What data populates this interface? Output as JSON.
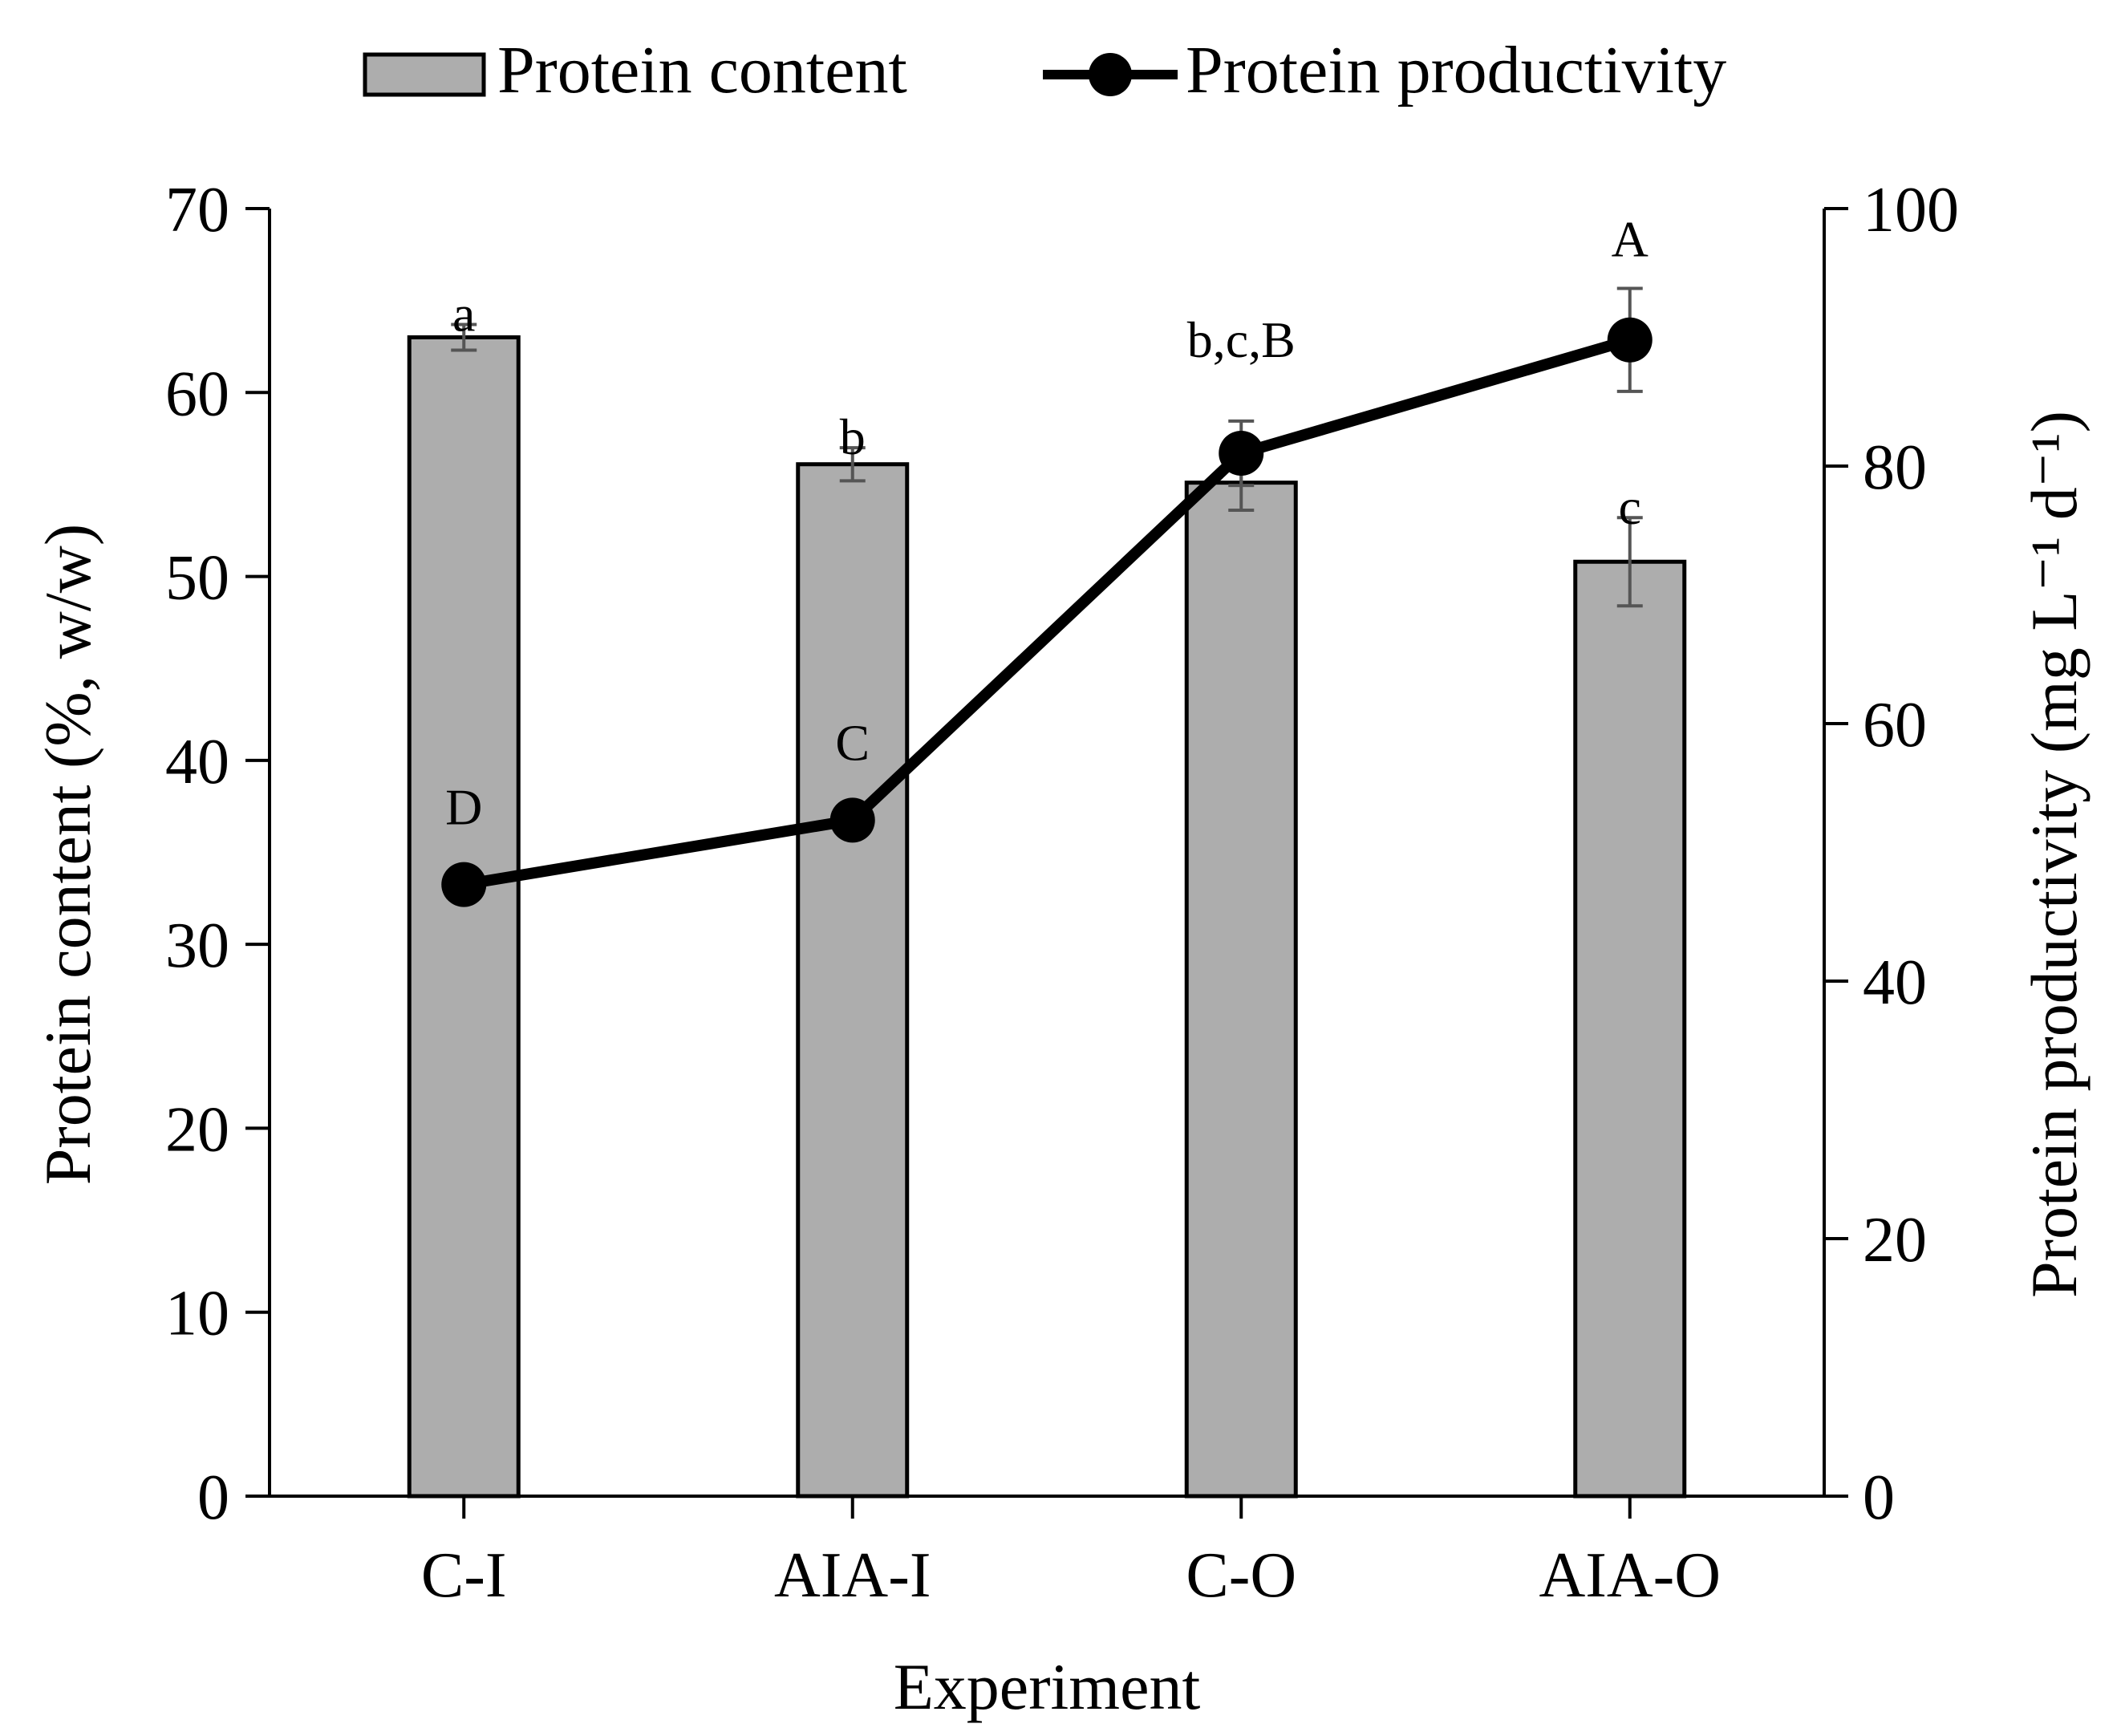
{
  "chart_data": {
    "type": "bar+line",
    "categories": [
      "C-I",
      "AIA-I",
      "C-O",
      "AIA-O"
    ],
    "xlabel": "Experiment",
    "legend": {
      "position": "top",
      "bar_label": "Protein content",
      "line_label": "Protein productivity"
    },
    "y_left": {
      "label": "Protein content (%, w/w)",
      "range": [
        0,
        70
      ],
      "ticks": [
        0,
        10,
        20,
        30,
        40,
        50,
        60,
        70
      ]
    },
    "y_right": {
      "label": "Protein productivity (mg L⁻¹ d⁻¹)",
      "range": [
        0,
        100
      ],
      "ticks": [
        0,
        20,
        40,
        60,
        80,
        100
      ]
    },
    "series": [
      {
        "name": "Protein content",
        "type": "bar",
        "axis": "left",
        "values": [
          63.0,
          56.1,
          55.1,
          50.8
        ],
        "errors": [
          0.7,
          0.9,
          1.5,
          2.4
        ],
        "labels": [
          "a",
          "b",
          "",
          "c"
        ]
      },
      {
        "name": "Protein productivity",
        "type": "line",
        "axis": "right",
        "values": [
          47.5,
          52.5,
          81.0,
          89.8
        ],
        "errors": [
          0,
          0,
          2.5,
          4.0
        ],
        "labels": [
          "D",
          "C",
          "",
          "A"
        ]
      }
    ],
    "shared_labels": [
      "",
      "",
      "b,c,B",
      ""
    ],
    "colors": {
      "bar_fill": "#adadad",
      "bar_stroke": "#000000",
      "line": "#000000",
      "error_bar": "#555555",
      "axis": "#000000"
    }
  }
}
